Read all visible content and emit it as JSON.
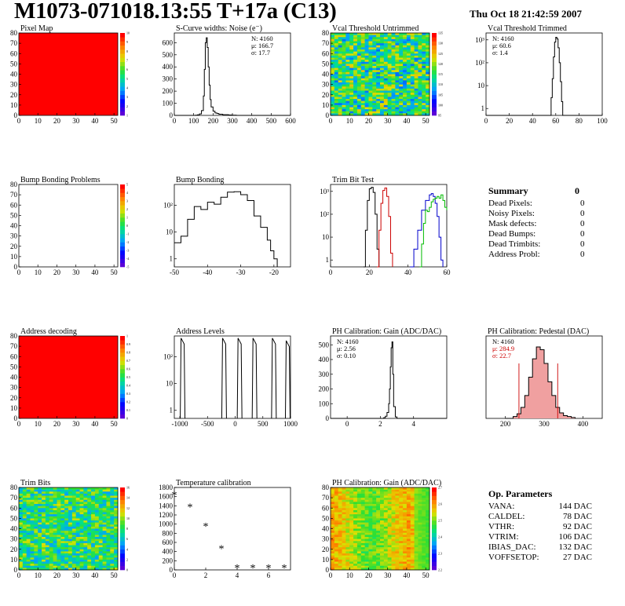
{
  "page": {
    "title": "M1073-071018.13:55 T+17a (C13)",
    "timestamp": "Thu Oct 18 21:42:59 2007"
  },
  "summary": {
    "heading": "Summary",
    "heading_value": "0",
    "rows": [
      {
        "label": "Dead Pixels:",
        "value": "0"
      },
      {
        "label": "Noisy Pixels:",
        "value": "0"
      },
      {
        "label": "Mask defects:",
        "value": "0"
      },
      {
        "label": "Dead Bumps:",
        "value": "0"
      },
      {
        "label": "Dead Trimbits:",
        "value": "0"
      },
      {
        "label": "Address Probl:",
        "value": "0"
      }
    ]
  },
  "op_parameters": {
    "heading": "Op. Parameters",
    "rows": [
      {
        "label": "VANA:",
        "value": "144 DAC"
      },
      {
        "label": "CALDEL:",
        "value": "78 DAC"
      },
      {
        "label": "VTHR:",
        "value": "92 DAC"
      },
      {
        "label": "VTRIM:",
        "value": "106 DAC"
      },
      {
        "label": "IBIAS_DAC:",
        "value": "132 DAC"
      },
      {
        "label": "VOFFSETOP:",
        "value": "27 DAC"
      }
    ]
  },
  "chart_data": [
    {
      "id": "pixel_map",
      "type": "heatmap",
      "title": "Pixel Map",
      "xlim": [
        0,
        52
      ],
      "ylim": [
        0,
        80
      ],
      "xticks": [
        "0",
        "10",
        "20",
        "30",
        "40",
        "50"
      ],
      "yticks": [
        "0",
        "10",
        "20",
        "30",
        "40",
        "50",
        "60",
        "70",
        "80"
      ],
      "fill": "uniform",
      "fill_color": "#ff0000",
      "colorbar_ticks": [
        "1",
        "2",
        "3",
        "4",
        "5",
        "6",
        "7",
        "8",
        "9",
        "10"
      ]
    },
    {
      "id": "scurve_noise",
      "type": "line",
      "title": "S-Curve widths: Noise (e⁻)",
      "xlim": [
        0,
        600
      ],
      "ylim": [
        0,
        680
      ],
      "xticks": [
        "0",
        "100",
        "200",
        "300",
        "400",
        "500",
        "600"
      ],
      "yticks": [
        "0",
        "100",
        "200",
        "300",
        "400",
        "500",
        "600"
      ],
      "stats": [
        {
          "text": "N: 4160"
        },
        {
          "text": "μ: 166.7"
        },
        {
          "text": "σ: 17.7"
        }
      ],
      "series": [
        {
          "color": "#000000",
          "x": [
            0,
            100,
            110,
            120,
            130,
            140,
            150,
            155,
            160,
            165,
            170,
            175,
            180,
            185,
            190,
            200,
            210,
            220,
            230,
            250,
            280,
            300,
            320,
            600
          ],
          "y": [
            0,
            0,
            2,
            5,
            12,
            40,
            160,
            380,
            600,
            640,
            560,
            400,
            250,
            130,
            70,
            35,
            20,
            15,
            10,
            6,
            3,
            2,
            0,
            0
          ]
        }
      ]
    },
    {
      "id": "vcal_untrimmed",
      "type": "heatmap",
      "title": "Vcal Threshold Untrimmed",
      "xlim": [
        0,
        52
      ],
      "ylim": [
        0,
        80
      ],
      "xticks": [
        "0",
        "10",
        "20",
        "30",
        "40",
        "50"
      ],
      "yticks": [
        "0",
        "10",
        "20",
        "30",
        "40",
        "50",
        "60",
        "70",
        "80"
      ],
      "fill": "random",
      "fill_min": 0.25,
      "fill_max": 0.75,
      "colorbar_ticks": [
        "95",
        "100",
        "105",
        "110",
        "115",
        "120",
        "125",
        "130",
        "135"
      ]
    },
    {
      "id": "vcal_trimmed",
      "type": "line",
      "title": "Vcal Threshold Trimmed",
      "xlim": [
        0,
        100
      ],
      "ylim": [
        0.5,
        2000
      ],
      "yscale": "log",
      "xticks": [
        "0",
        "20",
        "40",
        "60",
        "80",
        "100"
      ],
      "yticks": [
        {
          "v": 1,
          "label": "1"
        },
        {
          "v": 10,
          "label": "10"
        },
        {
          "v": 100,
          "label": "10²"
        },
        {
          "v": 1000,
          "label": "10³"
        }
      ],
      "stats": [
        {
          "text": "N: 4160"
        },
        {
          "text": "μ: 60.6"
        },
        {
          "text": "σ:  1.4"
        }
      ],
      "series": [
        {
          "color": "#000000",
          "x": [
            0,
            54,
            56,
            57,
            58,
            59,
            60,
            61,
            62,
            63,
            64,
            65,
            66,
            100
          ],
          "y": [
            0.5,
            0.5,
            3,
            20,
            180,
            800,
            1300,
            1100,
            450,
            100,
            15,
            2,
            0.5,
            0.5
          ]
        }
      ]
    },
    {
      "id": "bump_bonding_problems",
      "type": "heatmap",
      "title": "Bump Bonding Problems",
      "xlim": [
        0,
        52
      ],
      "ylim": [
        0,
        80
      ],
      "xticks": [
        "0",
        "10",
        "20",
        "30",
        "40",
        "50"
      ],
      "yticks": [
        "0",
        "10",
        "20",
        "30",
        "40",
        "50",
        "60",
        "70",
        "80"
      ],
      "fill": "empty",
      "colorbar_ticks": [
        "-5",
        "-4",
        "-3",
        "-2",
        "-1",
        "0",
        "1",
        "2",
        "3",
        "4",
        "5"
      ]
    },
    {
      "id": "bump_bonding",
      "type": "line",
      "title": "Bump Bonding",
      "xlim": [
        -50,
        -15
      ],
      "ylim": [
        0.5,
        600
      ],
      "yscale": "log",
      "xticks": [
        "-50",
        "-40",
        "-30",
        "-20"
      ],
      "yticks": [
        {
          "v": 1,
          "label": "1"
        },
        {
          "v": 10,
          "label": "10"
        },
        {
          "v": 100,
          "label": "10²"
        }
      ],
      "series": [
        {
          "color": "#000000",
          "x": [
            -50,
            -48,
            -46,
            -44,
            -42,
            -40,
            -38,
            -36,
            -34,
            -32,
            -30,
            -28,
            -26,
            -24,
            -22,
            -21,
            -20,
            -19
          ],
          "y": [
            4,
            7,
            30,
            90,
            70,
            130,
            110,
            200,
            310,
            320,
            250,
            150,
            40,
            15,
            5,
            2,
            1,
            0.5
          ]
        }
      ]
    },
    {
      "id": "trim_bit_test",
      "type": "line",
      "title": "Trim Bit Test",
      "xlim": [
        0,
        60
      ],
      "ylim": [
        0.5,
        2000
      ],
      "yscale": "log",
      "xticks": [
        "0",
        "20",
        "40",
        "60"
      ],
      "yticks": [
        {
          "v": 1,
          "label": "1"
        },
        {
          "v": 10,
          "label": "10"
        },
        {
          "v": 100,
          "label": "10²"
        },
        {
          "v": 1000,
          "label": "10³"
        }
      ],
      "series": [
        {
          "color": "#000000",
          "x": [
            17,
            18,
            19,
            20,
            21,
            22,
            23,
            24,
            25
          ],
          "y": [
            0.5,
            20,
            400,
            1300,
            1500,
            900,
            100,
            3,
            0.5
          ]
        },
        {
          "color": "#cc0000",
          "x": [
            24,
            25,
            26,
            27,
            28,
            29,
            30,
            31,
            32
          ],
          "y": [
            0.5,
            20,
            300,
            1100,
            1400,
            600,
            80,
            2,
            0.5
          ]
        },
        {
          "color": "#0000cc",
          "x": [
            41,
            43,
            45,
            47,
            49,
            51,
            52,
            53,
            54,
            55,
            56,
            57,
            58
          ],
          "y": [
            0.5,
            3,
            20,
            150,
            400,
            700,
            800,
            600,
            300,
            80,
            10,
            1,
            0.5
          ]
        },
        {
          "color": "#00bb00",
          "x": [
            46,
            47,
            48,
            49,
            50,
            51,
            52,
            53,
            54,
            55,
            56,
            57,
            58,
            59,
            60
          ],
          "y": [
            0.5,
            5,
            40,
            150,
            130,
            200,
            350,
            450,
            500,
            600,
            500,
            700,
            400,
            200,
            150
          ]
        }
      ]
    },
    {
      "id": "address_decoding",
      "type": "heatmap",
      "title": "Address decoding",
      "xlim": [
        0,
        52
      ],
      "ylim": [
        0,
        80
      ],
      "xticks": [
        "0",
        "10",
        "20",
        "30",
        "40",
        "50"
      ],
      "yticks": [
        "0",
        "10",
        "20",
        "30",
        "40",
        "50",
        "60",
        "70",
        "80"
      ],
      "fill": "uniform",
      "fill_color": "#ff0000",
      "colorbar_ticks": [
        "0",
        "0.1",
        "0.2",
        "0.3",
        "0.4",
        "0.5",
        "0.6",
        "0.7",
        "0.8",
        "0.9",
        "1"
      ]
    },
    {
      "id": "address_levels",
      "type": "line",
      "title": "Address Levels",
      "xlim": [
        -1100,
        1000
      ],
      "ylim": [
        0.5,
        600
      ],
      "yscale": "log",
      "xticks": [
        "-1000",
        "-500",
        "0",
        "500",
        "1000"
      ],
      "yticks": [
        {
          "v": 1,
          "label": "1"
        },
        {
          "v": 10,
          "label": "10"
        },
        {
          "v": 100,
          "label": "10²"
        }
      ],
      "peaks": [
        {
          "x": -950,
          "h": 500
        },
        {
          "x": -200,
          "h": 500
        },
        {
          "x": 80,
          "h": 500
        },
        {
          "x": 350,
          "h": 500
        },
        {
          "x": 700,
          "h": 500
        },
        {
          "x": 950,
          "h": 400
        }
      ],
      "series": []
    },
    {
      "id": "ph_gain",
      "type": "line",
      "title": "PH Calibration: Gain (ADC/DAC)",
      "xlim": [
        -1,
        6
      ],
      "ylim": [
        0,
        560
      ],
      "xticks": [
        "0",
        "2",
        "4"
      ],
      "yticks": [
        "0",
        "100",
        "200",
        "300",
        "400",
        "500"
      ],
      "stats": [
        {
          "text": "N: 4160"
        },
        {
          "text": "μ: 2.56"
        },
        {
          "text": "σ: 0.10"
        }
      ],
      "series": [
        {
          "color": "#000000",
          "x": [
            -1,
            2.1,
            2.2,
            2.3,
            2.4,
            2.5,
            2.55,
            2.6,
            2.65,
            2.7,
            2.75,
            2.8,
            2.9,
            3.0,
            6
          ],
          "y": [
            0,
            0,
            5,
            15,
            40,
            100,
            200,
            350,
            480,
            520,
            300,
            80,
            10,
            0,
            0
          ]
        }
      ]
    },
    {
      "id": "ph_pedestal",
      "type": "line",
      "title": "PH Calibration: Pedestal (DAC)",
      "xlim": [
        150,
        450
      ],
      "ylim": [
        0,
        90
      ],
      "xticks": [
        "200",
        "300",
        "400"
      ],
      "yticks": [],
      "stats": [
        {
          "text": "N: 4160",
          "color": "#000000"
        },
        {
          "text": "μ: 284.9",
          "color": "#cc0000"
        },
        {
          "text": "σ: 22.7",
          "color": "#cc0000"
        }
      ],
      "markers": [
        {
          "x": 235,
          "y": 60
        },
        {
          "x": 335,
          "y": 60
        }
      ],
      "series": [
        {
          "color": "#000000",
          "fill": "#f0a0a0",
          "x": [
            200,
            220,
            230,
            240,
            250,
            260,
            270,
            280,
            290,
            300,
            310,
            320,
            330,
            340,
            350,
            360,
            370,
            380
          ],
          "y": [
            0,
            2,
            5,
            12,
            25,
            45,
            65,
            78,
            75,
            60,
            40,
            25,
            12,
            6,
            3,
            2,
            1,
            0
          ]
        }
      ]
    },
    {
      "id": "trim_bits",
      "type": "heatmap",
      "title": "Trim Bits",
      "xlim": [
        0,
        52
      ],
      "ylim": [
        0,
        80
      ],
      "xticks": [
        "0",
        "10",
        "20",
        "30",
        "40",
        "50"
      ],
      "yticks": [
        "0",
        "10",
        "20",
        "30",
        "40",
        "50",
        "60",
        "70",
        "80"
      ],
      "fill": "random",
      "fill_min": 0.3,
      "fill_max": 0.7,
      "colorbar_ticks": [
        "0",
        "2",
        "4",
        "6",
        "8",
        "10",
        "12",
        "14",
        "16"
      ]
    },
    {
      "id": "temperature_calibration",
      "type": "scatter",
      "title": "Temperature calibration",
      "xlim": [
        0,
        7.4
      ],
      "ylim": [
        0,
        1800
      ],
      "xticks": [
        "0",
        "2",
        "4",
        "6"
      ],
      "yticks": [
        "0",
        "200",
        "400",
        "600",
        "800",
        "1000",
        "1200",
        "1400",
        "1600",
        "1800"
      ],
      "series": [
        {
          "marker": "*",
          "x": [
            0,
            1,
            2,
            3,
            4,
            5,
            6,
            7
          ],
          "y": [
            1650,
            1380,
            960,
            470,
            50,
            50,
            50,
            50
          ]
        }
      ]
    },
    {
      "id": "ph_gain_map",
      "type": "heatmap",
      "title": "PH Calibration: Gain (ADC/DAC)",
      "xlim": [
        0,
        52
      ],
      "ylim": [
        0,
        80
      ],
      "xticks": [
        "0",
        "10",
        "20",
        "30",
        "40",
        "50"
      ],
      "yticks": [
        "0",
        "10",
        "20",
        "30",
        "40",
        "50",
        "60",
        "70",
        "80"
      ],
      "fill": "gradient",
      "colorbar_ticks": [
        "2.2",
        "2.3",
        "2.4",
        "2.5",
        "2.6",
        "2.7"
      ]
    }
  ]
}
